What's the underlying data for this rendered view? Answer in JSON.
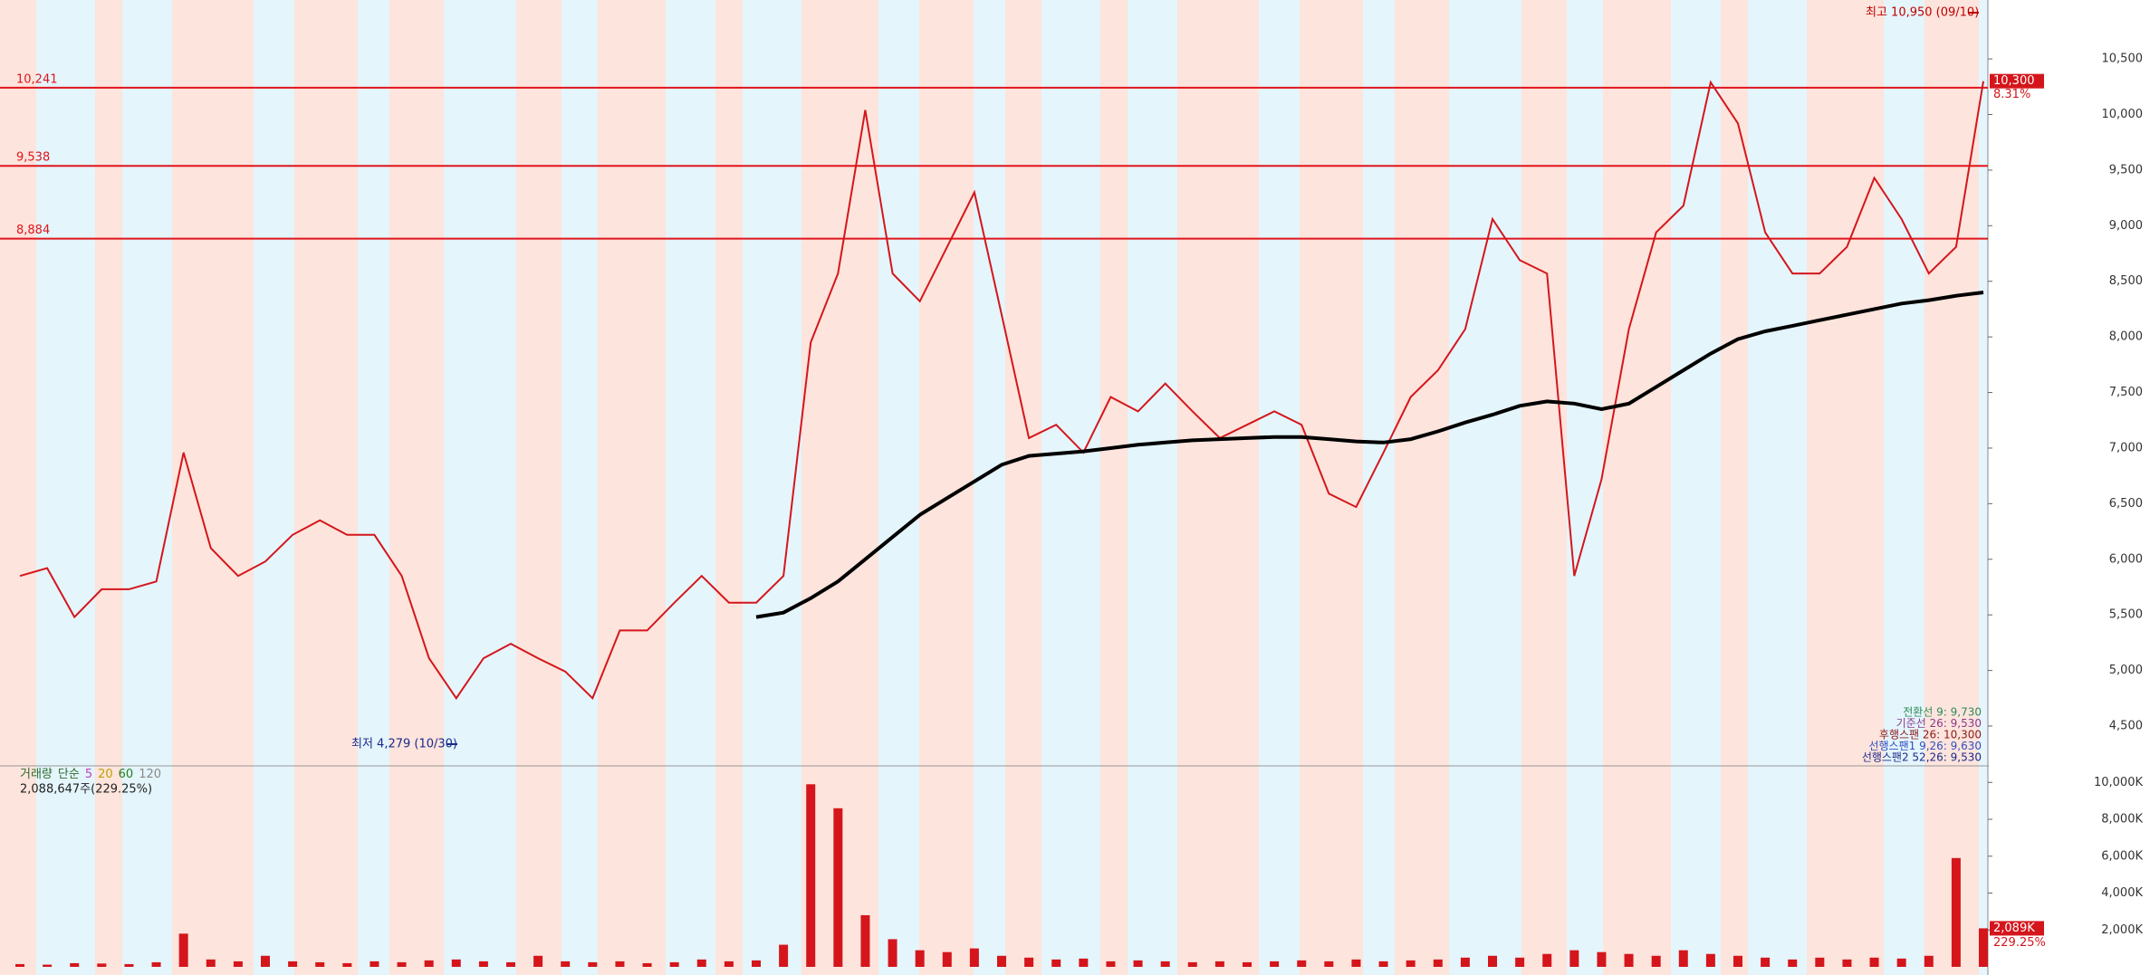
{
  "chart_data": [
    {
      "type": "line",
      "series": [
        {
          "color": "#d4161c",
          "values": [
            5850,
            5920,
            5480,
            5730,
            5730,
            5800,
            6960,
            6100,
            5850,
            5980,
            6220,
            6350,
            6220,
            6220,
            5850,
            5110,
            4750,
            5110,
            5240,
            5110,
            4990,
            4750,
            5360,
            5360,
            5610,
            5850,
            5610,
            5610,
            5850,
            7950,
            8570,
            10040,
            8570,
            8320,
            8810,
            9300,
            8200,
            7090,
            7210,
            6960,
            7460,
            7330,
            7580,
            7330,
            7090,
            7210,
            7330,
            7210,
            6590,
            6470,
            6960,
            7460,
            7700,
            8070,
            9060,
            8690,
            8570,
            5850,
            6720,
            8070,
            8940,
            9180,
            10290,
            9920,
            8940,
            8570,
            8570,
            8810,
            9430,
            9060,
            8570,
            8810,
            10300
          ]
        },
        {
          "color": "#000000",
          "values": [
            null,
            null,
            null,
            null,
            null,
            null,
            null,
            null,
            null,
            null,
            null,
            null,
            null,
            null,
            null,
            null,
            null,
            null,
            null,
            null,
            null,
            null,
            null,
            null,
            null,
            null,
            null,
            5480,
            5520,
            5650,
            5800,
            6000,
            6200,
            6400,
            6550,
            6700,
            6850,
            6930,
            6950,
            6970,
            7000,
            7030,
            7050,
            7070,
            7080,
            7090,
            7100,
            7100,
            7080,
            7060,
            7050,
            7080,
            7150,
            7230,
            7300,
            7380,
            7420,
            7400,
            7350,
            7400,
            7550,
            7700,
            7850,
            7980,
            8050,
            8100,
            8150,
            8200,
            8250,
            8300,
            8330,
            8370,
            8400
          ]
        }
      ],
      "ylim": [
        4150,
        11030
      ],
      "yticks": [
        {
          "value": 4500,
          "label": "4,500"
        },
        {
          "value": 5000,
          "label": "5,000"
        },
        {
          "value": 5500,
          "label": "5,500"
        },
        {
          "value": 6000,
          "label": "6,000"
        },
        {
          "value": 6500,
          "label": "6,500"
        },
        {
          "value": 7000,
          "label": "7,000"
        },
        {
          "value": 7500,
          "label": "7,500"
        },
        {
          "value": 8000,
          "label": "8,000"
        },
        {
          "value": 8500,
          "label": "8,500"
        },
        {
          "value": 9000,
          "label": "9,000"
        },
        {
          "value": 9500,
          "label": "9,500"
        },
        {
          "value": 10000,
          "label": "10,000"
        },
        {
          "value": 10500,
          "label": "10,500"
        }
      ],
      "hlines": [
        {
          "value": 10241,
          "label": "10,241"
        },
        {
          "value": 9538,
          "label": "9,538"
        },
        {
          "value": 8884,
          "label": "8,884"
        }
      ],
      "hline_color": "#e0141b",
      "annotations": [
        {
          "text": "최고 10,950 (09/10)",
          "color": "#c00000"
        },
        {
          "text": "최저 4,279 (10/30)",
          "color": "#1a2a8c"
        }
      ],
      "last_price": {
        "value": 10300,
        "label": "10,300"
      },
      "last_change": "8.31%",
      "indicator_legend": [
        {
          "text": "전환선 9: 9,730",
          "color": "#2e8b57"
        },
        {
          "text": "기준선 26: 9,530",
          "color": "#8b3a8b"
        },
        {
          "text": "후행스팬 26: 10,300",
          "color": "#8b1a1a"
        },
        {
          "text": "선행스팬1 9,26: 9,630",
          "color": "#3050c0"
        },
        {
          "text": "선행스팬2 52,26: 9,530",
          "color": "#1a2a8c"
        }
      ]
    },
    {
      "type": "bar",
      "legend": [
        "거래량",
        "단순",
        "5",
        "20",
        "60",
        "120"
      ],
      "summary": "2,088,647주(229.25%)",
      "color": "#d4161c",
      "values": [
        150,
        120,
        200,
        180,
        150,
        250,
        1800,
        400,
        300,
        600,
        300,
        250,
        200,
        300,
        250,
        350,
        400,
        300,
        250,
        600,
        300,
        250,
        300,
        200,
        250,
        400,
        300,
        350,
        1200,
        9900,
        8600,
        2800,
        1500,
        900,
        800,
        1000,
        600,
        500,
        400,
        450,
        300,
        350,
        300,
        250,
        300,
        250,
        300,
        350,
        300,
        400,
        300,
        350,
        400,
        500,
        600,
        500,
        700,
        900,
        800,
        700,
        600,
        900,
        700,
        600,
        500,
        400,
        500,
        400,
        500,
        450,
        600,
        5900,
        2089
      ],
      "ylim": [
        0,
        10700
      ],
      "yticks": [
        {
          "value": 2000,
          "label": "2,000K"
        },
        {
          "value": 4000,
          "label": "4,000K"
        },
        {
          "value": 6000,
          "label": "6,000K"
        },
        {
          "value": 8000,
          "label": "8,000K"
        },
        {
          "value": 10000,
          "label": "10,000K"
        }
      ],
      "last_tag": {
        "value": 2089,
        "label": "2,089K"
      },
      "last_change": "229.25%"
    }
  ]
}
